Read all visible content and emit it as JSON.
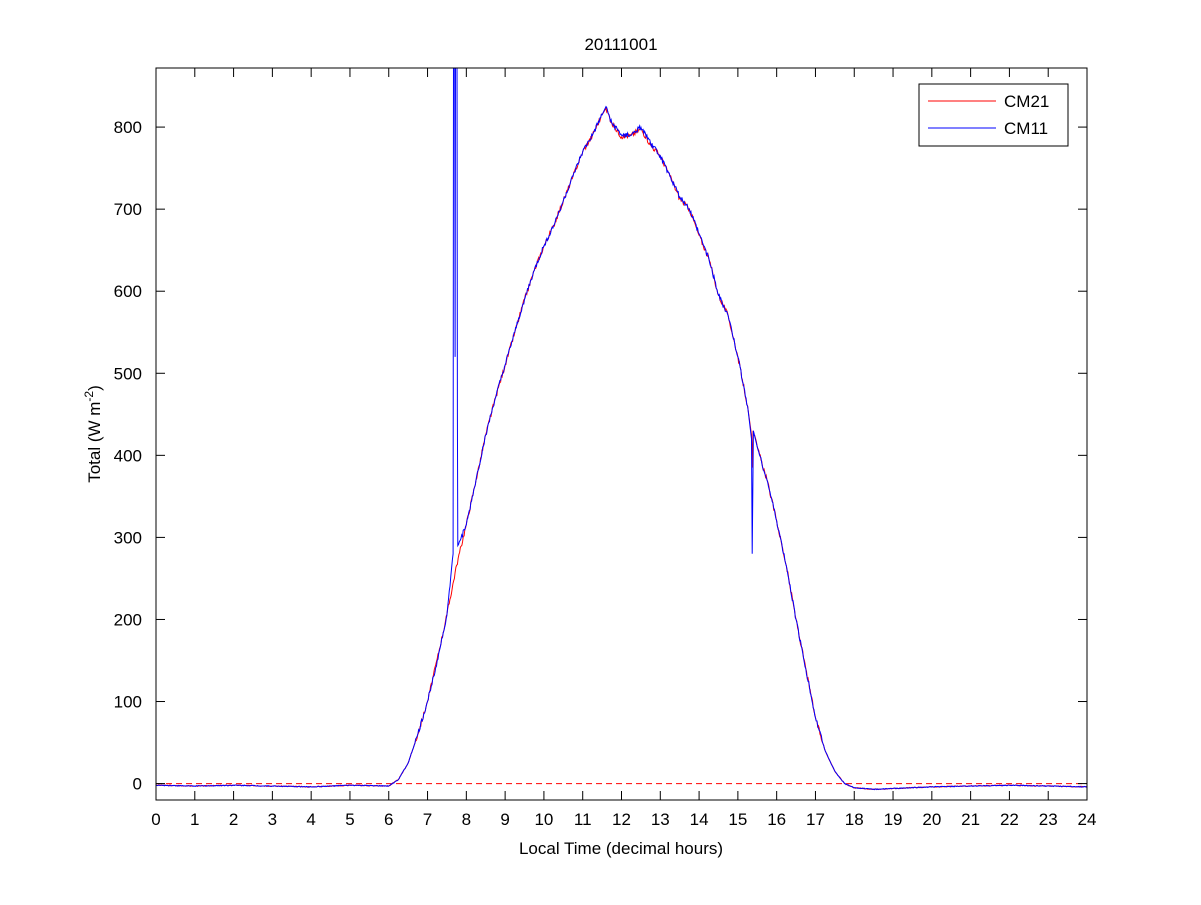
{
  "chart_data": {
    "type": "line",
    "title": "20111001",
    "xlabel": "Local Time (decimal hours)",
    "ylabel_main": "Total (W m",
    "ylabel_sup": "-2",
    "ylabel_end": ")",
    "xlim": [
      0,
      24
    ],
    "ylim": [
      -20,
      872
    ],
    "xticks": [
      0,
      1,
      2,
      3,
      4,
      5,
      6,
      7,
      8,
      9,
      10,
      11,
      12,
      13,
      14,
      15,
      16,
      17,
      18,
      19,
      20,
      21,
      22,
      23,
      24
    ],
    "yticks": [
      0,
      100,
      200,
      300,
      400,
      500,
      600,
      700,
      800
    ],
    "grid": false,
    "legend_position": "top-right",
    "reference_line": {
      "y": 0,
      "style": "dashed",
      "color": "#ff0000"
    },
    "series": [
      {
        "name": "CM21",
        "color": "#ff0000",
        "points": [
          [
            0,
            -2
          ],
          [
            1,
            -3
          ],
          [
            2,
            -2
          ],
          [
            3,
            -3
          ],
          [
            4,
            -4
          ],
          [
            5,
            -2
          ],
          [
            6,
            -3
          ],
          [
            6.25,
            5
          ],
          [
            6.5,
            25
          ],
          [
            6.75,
            60
          ],
          [
            7,
            100
          ],
          [
            7.25,
            152
          ],
          [
            7.5,
            206
          ],
          [
            7.75,
            266
          ],
          [
            8,
            316
          ],
          [
            8.25,
            370
          ],
          [
            8.5,
            425
          ],
          [
            8.75,
            470
          ],
          [
            9,
            510
          ],
          [
            9.25,
            550
          ],
          [
            9.5,
            590
          ],
          [
            9.75,
            625
          ],
          [
            10,
            655
          ],
          [
            10.25,
            680
          ],
          [
            10.5,
            710
          ],
          [
            10.75,
            740
          ],
          [
            11,
            770
          ],
          [
            11.25,
            790
          ],
          [
            11.5,
            815
          ],
          [
            11.6,
            823
          ],
          [
            11.75,
            805
          ],
          [
            12,
            788
          ],
          [
            12.25,
            790
          ],
          [
            12.5,
            798
          ],
          [
            12.75,
            778
          ],
          [
            13,
            765
          ],
          [
            13.25,
            740
          ],
          [
            13.5,
            713
          ],
          [
            13.75,
            700
          ],
          [
            14,
            668
          ],
          [
            14.25,
            640
          ],
          [
            14.5,
            595
          ],
          [
            14.75,
            570
          ],
          [
            15,
            520
          ],
          [
            15.25,
            460
          ],
          [
            15.35,
            425
          ],
          [
            15.37,
            385
          ],
          [
            15.39,
            430
          ],
          [
            15.5,
            410
          ],
          [
            15.75,
            370
          ],
          [
            16,
            320
          ],
          [
            16.25,
            265
          ],
          [
            16.5,
            200
          ],
          [
            16.75,
            140
          ],
          [
            17,
            80
          ],
          [
            17.25,
            40
          ],
          [
            17.5,
            15
          ],
          [
            17.75,
            0
          ],
          [
            18,
            -5
          ],
          [
            18.5,
            -7
          ],
          [
            19,
            -6
          ],
          [
            20,
            -4
          ],
          [
            21,
            -3
          ],
          [
            22,
            -2
          ],
          [
            23,
            -3
          ],
          [
            24,
            -4
          ]
        ]
      },
      {
        "name": "CM11",
        "color": "#0000ff",
        "points": [
          [
            0,
            -2
          ],
          [
            1,
            -3
          ],
          [
            2,
            -2
          ],
          [
            3,
            -3
          ],
          [
            4,
            -4
          ],
          [
            5,
            -2
          ],
          [
            6,
            -3
          ],
          [
            6.25,
            5
          ],
          [
            6.5,
            25
          ],
          [
            6.75,
            60
          ],
          [
            7,
            100
          ],
          [
            7.25,
            150
          ],
          [
            7.5,
            205
          ],
          [
            7.66,
            280
          ],
          [
            7.67,
            900
          ],
          [
            7.7,
            900
          ],
          [
            7.71,
            520
          ],
          [
            7.72,
            900
          ],
          [
            7.76,
            900
          ],
          [
            7.77,
            450
          ],
          [
            7.78,
            290
          ],
          [
            8,
            315
          ],
          [
            8.25,
            370
          ],
          [
            8.5,
            425
          ],
          [
            8.75,
            470
          ],
          [
            9,
            510
          ],
          [
            9.25,
            550
          ],
          [
            9.5,
            590
          ],
          [
            9.75,
            625
          ],
          [
            10,
            655
          ],
          [
            10.25,
            680
          ],
          [
            10.5,
            710
          ],
          [
            10.75,
            740
          ],
          [
            11,
            770
          ],
          [
            11.25,
            790
          ],
          [
            11.5,
            815
          ],
          [
            11.6,
            825
          ],
          [
            11.75,
            805
          ],
          [
            12,
            790
          ],
          [
            12.25,
            790
          ],
          [
            12.5,
            800
          ],
          [
            12.75,
            780
          ],
          [
            13,
            765
          ],
          [
            13.25,
            740
          ],
          [
            13.5,
            715
          ],
          [
            13.75,
            700
          ],
          [
            14,
            670
          ],
          [
            14.25,
            640
          ],
          [
            14.5,
            595
          ],
          [
            14.75,
            570
          ],
          [
            15,
            520
          ],
          [
            15.25,
            460
          ],
          [
            15.35,
            420
          ],
          [
            15.37,
            280
          ],
          [
            15.4,
            430
          ],
          [
            15.5,
            410
          ],
          [
            15.75,
            370
          ],
          [
            16,
            320
          ],
          [
            16.25,
            265
          ],
          [
            16.5,
            200
          ],
          [
            16.75,
            140
          ],
          [
            17,
            80
          ],
          [
            17.25,
            40
          ],
          [
            17.5,
            15
          ],
          [
            17.75,
            0
          ],
          [
            18,
            -5
          ],
          [
            18.5,
            -7
          ],
          [
            19,
            -6
          ],
          [
            20,
            -4
          ],
          [
            21,
            -3
          ],
          [
            22,
            -2
          ],
          [
            23,
            -3
          ],
          [
            24,
            -4
          ]
        ]
      }
    ]
  }
}
